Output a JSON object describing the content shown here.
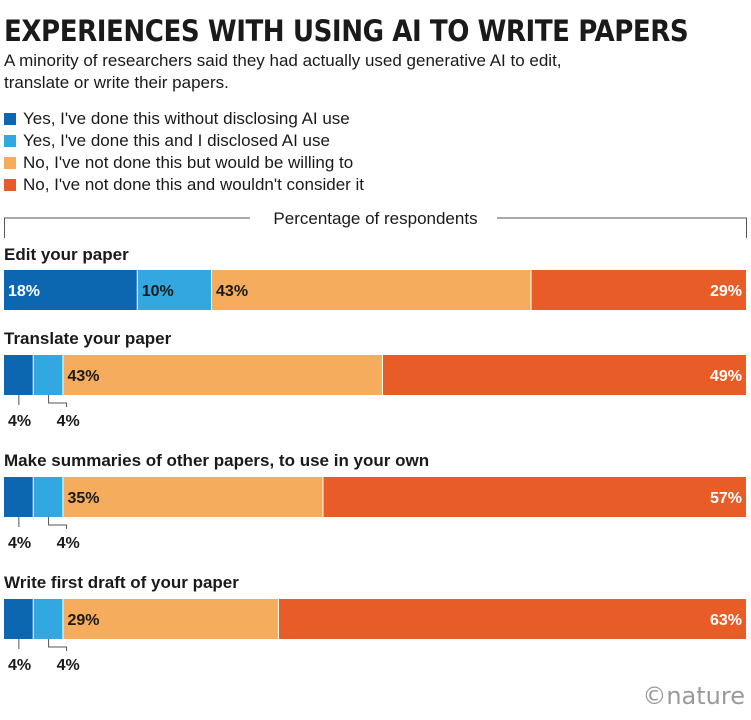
{
  "title": "EXPERIENCES WITH USING AI TO WRITE PAPERS",
  "subtitle": "A minority of researchers said they had actually used generative AI to edit, translate or write their papers.",
  "credit": "©nature",
  "colors": {
    "dark_blue": "#0c67b0",
    "light_blue": "#33a7df",
    "light_orange": "#f5ad5d",
    "dark_orange": "#e85c27"
  },
  "chart_data": {
    "type": "bar",
    "orientation": "horizontal",
    "stacked": true,
    "axis_label": "Percentage of respondents",
    "unit": "%",
    "xlim": [
      0,
      100
    ],
    "categories": [
      "Edit your paper",
      "Translate your paper",
      "Make summaries of other papers, to use in your own",
      "Write first draft of your paper"
    ],
    "series": [
      {
        "name": "Yes, I've done this without disclosing AI use",
        "color": "#0c67b0",
        "values": [
          18,
          4,
          4,
          4
        ]
      },
      {
        "name": "Yes, I've done this and I disclosed AI use",
        "color": "#33a7df",
        "values": [
          10,
          4,
          4,
          4
        ]
      },
      {
        "name": "No, I've not done this but would be willing to",
        "color": "#f5ad5d",
        "values": [
          43,
          43,
          35,
          29
        ]
      },
      {
        "name": "No, I've not done this and wouldn't consider it",
        "color": "#e85c27",
        "values": [
          29,
          49,
          57,
          63
        ]
      }
    ]
  }
}
